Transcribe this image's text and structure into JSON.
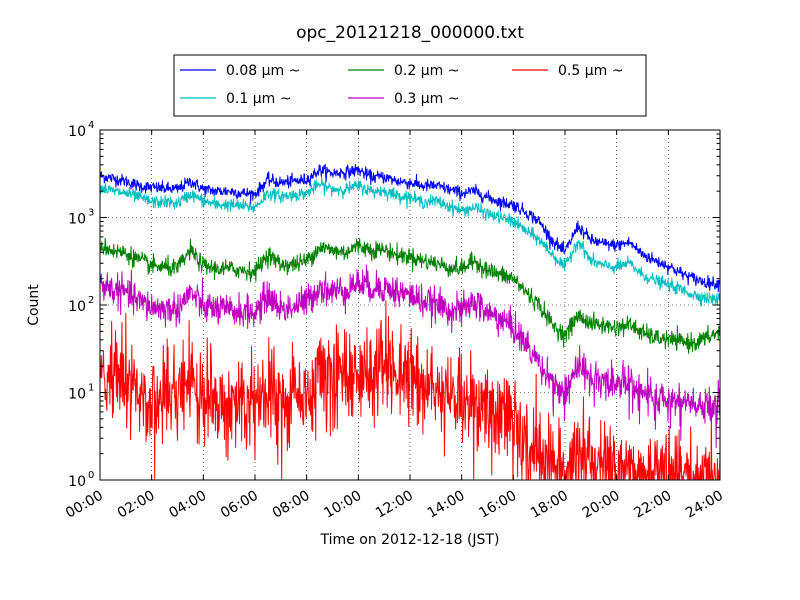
{
  "chart_data": {
    "type": "line",
    "title": "opc_20121218_000000.txt",
    "xlabel": "Time on 2012-12-18 (JST)",
    "ylabel": "Count",
    "x_unit": "hours",
    "xlim": [
      0,
      24
    ],
    "ylim": [
      1,
      10000
    ],
    "y_scale": "log",
    "grid": true,
    "legend_position": "top-center, above plot",
    "x_ticks": [
      {
        "x": 0,
        "label": "00:00"
      },
      {
        "x": 2,
        "label": "02:00"
      },
      {
        "x": 4,
        "label": "04:00"
      },
      {
        "x": 6,
        "label": "06:00"
      },
      {
        "x": 8,
        "label": "08:00"
      },
      {
        "x": 10,
        "label": "10:00"
      },
      {
        "x": 12,
        "label": "12:00"
      },
      {
        "x": 14,
        "label": "14:00"
      },
      {
        "x": 16,
        "label": "16:00"
      },
      {
        "x": 18,
        "label": "18:00"
      },
      {
        "x": 20,
        "label": "20:00"
      },
      {
        "x": 22,
        "label": "22:00"
      },
      {
        "x": 24,
        "label": "24:00"
      }
    ],
    "y_ticks": [
      {
        "y": 1,
        "base": "10",
        "exp": "0"
      },
      {
        "y": 10,
        "base": "10",
        "exp": "1"
      },
      {
        "y": 100,
        "base": "10",
        "exp": "2"
      },
      {
        "y": 1000,
        "base": "10",
        "exp": "3"
      },
      {
        "y": 10000,
        "base": "10",
        "exp": "4"
      }
    ],
    "series": [
      {
        "name": "0.08 μm ~",
        "color": "#0000ff",
        "x": [
          0,
          0.5,
          1,
          1.5,
          2,
          2.5,
          3,
          3.5,
          4,
          4.5,
          5,
          5.5,
          6,
          6.5,
          7,
          7.5,
          8,
          8.5,
          9,
          9.5,
          10,
          10.5,
          11,
          11.5,
          12,
          12.5,
          13,
          13.5,
          14,
          14.5,
          15,
          15.5,
          16,
          16.5,
          17,
          17.5,
          18,
          18.5,
          19,
          19.5,
          20,
          20.5,
          21,
          21.5,
          22,
          22.5,
          23,
          23.5,
          24
        ],
        "y": [
          3000,
          2800,
          2600,
          2300,
          2200,
          2150,
          2100,
          2600,
          2100,
          2000,
          2000,
          1900,
          1850,
          2700,
          2500,
          2600,
          2700,
          3500,
          3200,
          3300,
          3500,
          2900,
          2900,
          2600,
          2500,
          2300,
          2300,
          2100,
          1900,
          2000,
          1700,
          1500,
          1400,
          1150,
          900,
          550,
          400,
          800,
          550,
          500,
          480,
          520,
          380,
          320,
          280,
          230,
          200,
          180,
          175
        ]
      },
      {
        "name": "0.1 μm ~",
        "color": "#00bfbf",
        "x": [
          0,
          0.5,
          1,
          1.5,
          2,
          2.5,
          3,
          3.5,
          4,
          4.5,
          5,
          5.5,
          6,
          6.5,
          7,
          7.5,
          8,
          8.5,
          9,
          9.5,
          10,
          10.5,
          11,
          11.5,
          12,
          12.5,
          13,
          13.5,
          14,
          14.5,
          15,
          15.5,
          16,
          16.5,
          17,
          17.5,
          18,
          18.5,
          19,
          19.5,
          20,
          20.5,
          21,
          21.5,
          22,
          22.5,
          23,
          23.5,
          24
        ],
        "y": [
          2200,
          2000,
          1900,
          1700,
          1500,
          1500,
          1450,
          1850,
          1550,
          1400,
          1400,
          1350,
          1300,
          1900,
          1750,
          1800,
          1900,
          2400,
          2100,
          2100,
          2300,
          2000,
          2000,
          1800,
          1700,
          1500,
          1550,
          1350,
          1200,
          1300,
          1100,
          1000,
          900,
          700,
          560,
          380,
          270,
          550,
          320,
          280,
          270,
          300,
          220,
          190,
          170,
          150,
          130,
          120,
          115
        ]
      },
      {
        "name": "0.2 μm ~",
        "color": "#008000",
        "x": [
          0,
          0.5,
          1,
          1.5,
          2,
          2.5,
          3,
          3.5,
          4,
          4.5,
          5,
          5.5,
          6,
          6.5,
          7,
          7.5,
          8,
          8.5,
          9,
          9.5,
          10,
          10.5,
          11,
          11.5,
          12,
          12.5,
          13,
          13.5,
          14,
          14.5,
          15,
          15.5,
          16,
          16.5,
          17,
          17.5,
          18,
          18.5,
          19,
          19.5,
          20,
          20.5,
          21,
          21.5,
          22,
          22.5,
          23,
          23.5,
          24
        ],
        "y": [
          480,
          420,
          390,
          330,
          280,
          270,
          260,
          420,
          280,
          260,
          260,
          250,
          240,
          380,
          290,
          290,
          320,
          460,
          420,
          400,
          480,
          430,
          430,
          370,
          360,
          320,
          300,
          270,
          260,
          320,
          250,
          220,
          200,
          140,
          100,
          60,
          45,
          75,
          62,
          58,
          55,
          60,
          48,
          42,
          40,
          38,
          37,
          42,
          50
        ]
      },
      {
        "name": "0.3 μm ~",
        "color": "#bf00bf",
        "x": [
          0,
          0.5,
          1,
          1.5,
          2,
          2.5,
          3,
          3.5,
          4,
          4.5,
          5,
          5.5,
          6,
          6.5,
          7,
          7.5,
          8,
          8.5,
          9,
          9.5,
          10,
          10.5,
          11,
          11.5,
          12,
          12.5,
          13,
          13.5,
          14,
          14.5,
          15,
          15.5,
          16,
          16.5,
          17,
          17.5,
          18,
          18.5,
          19,
          19.5,
          20,
          20.5,
          21,
          21.5,
          22,
          22.5,
          23,
          23.5,
          24
        ],
        "y": [
          180,
          150,
          140,
          110,
          95,
          90,
          90,
          140,
          95,
          90,
          85,
          85,
          80,
          130,
          90,
          95,
          110,
          160,
          140,
          150,
          180,
          160,
          160,
          140,
          130,
          110,
          100,
          90,
          85,
          110,
          80,
          70,
          55,
          35,
          22,
          14,
          10,
          20,
          15,
          14,
          13,
          14,
          10,
          9,
          8,
          8,
          7,
          7,
          8
        ]
      },
      {
        "name": "0.5 μm ~",
        "color": "#ff0000",
        "x": [
          0,
          0.5,
          1,
          1.5,
          2,
          2.5,
          3,
          3.5,
          4,
          4.5,
          5,
          5.5,
          6,
          6.5,
          7,
          7.5,
          8,
          8.5,
          9,
          9.5,
          10,
          10.5,
          11,
          11.5,
          12,
          12.5,
          13,
          13.5,
          14,
          14.5,
          15,
          15.5,
          16,
          16.5,
          17,
          17.5,
          18,
          18.5,
          19,
          19.5,
          20,
          20.5,
          21,
          21.5,
          22,
          22.5,
          23,
          23.5,
          24
        ],
        "y": [
          18,
          14,
          12,
          9,
          8,
          8,
          8,
          15,
          8,
          8,
          7,
          7,
          7,
          12,
          8,
          8,
          10,
          18,
          16,
          18,
          22,
          20,
          20,
          18,
          16,
          13,
          11,
          10,
          8,
          10,
          7,
          6,
          5,
          3,
          2,
          1.6,
          1.2,
          2,
          1.6,
          1.5,
          1.4,
          1.4,
          1.3,
          1.2,
          1.1,
          1.1,
          1.1,
          1.1,
          1.2
        ]
      }
    ]
  }
}
